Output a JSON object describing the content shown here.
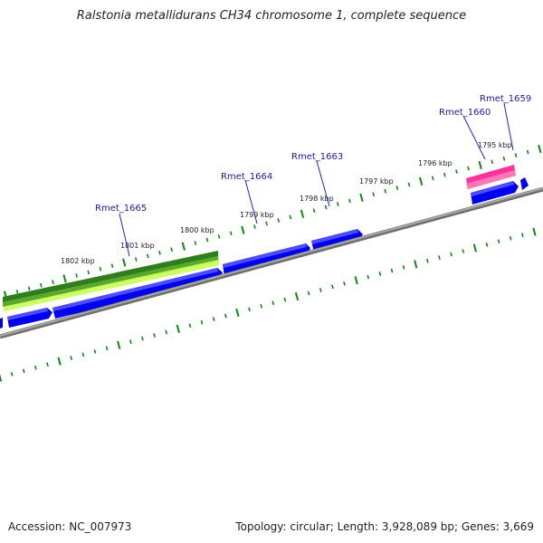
{
  "title": "Ralstonia metallidurans CH34 chromosome 1, complete sequence",
  "footer": {
    "accession": "Accession: NC_007973",
    "stats": "Topology: circular; Length: 3,928,089 bp; Genes: 3,669"
  },
  "colors": {
    "backbone": "#808080",
    "tick": "#118811",
    "gene_forward": "#0000ee",
    "gene_label": "#1a1aa6",
    "label_line": "#2222cc",
    "feature_green_dark": "#2e7d1e",
    "feature_green_light": "#ccff66",
    "feature_pink": "#ff3399"
  },
  "tick_labels": [
    "1802 kbp",
    "1801 kbp",
    "1800 kbp",
    "1799 kbp",
    "1798 kbp",
    "1797 kbp",
    "1796 kbp",
    "1795 kbp"
  ],
  "gene_labels": [
    "Rmet_1665",
    "Rmet_1664",
    "Rmet_1663",
    "Rmet_1660",
    "Rmet_1659"
  ]
}
